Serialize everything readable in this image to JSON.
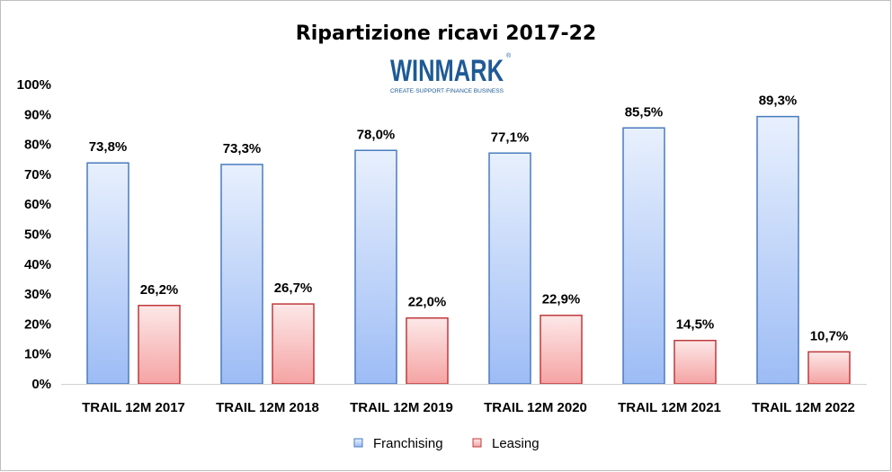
{
  "chart_data": {
    "type": "bar",
    "title": "Ripartizione  ricavi 2017-22",
    "logo": {
      "text": "WINMARK",
      "tagline": "CREATE·SUPPORT·FINANCE BUSINESS",
      "mark": "®"
    },
    "categories": [
      "TRAIL 12M 2017",
      "TRAIL 12M 2018",
      "TRAIL 12M 2019",
      "TRAIL 12M 2020",
      "TRAIL 12M 2021",
      "TRAIL 12M 2022"
    ],
    "series": [
      {
        "name": "Franchising",
        "values": [
          73.8,
          73.3,
          78.0,
          77.1,
          85.5,
          89.3
        ],
        "labels": [
          "73,8%",
          "73,3%",
          "78,0%",
          "77,1%",
          "85,5%",
          "89,3%"
        ],
        "color": "#9dbcf5",
        "stroke": "#4a7bbf"
      },
      {
        "name": "Leasing",
        "values": [
          26.2,
          26.7,
          22.0,
          22.9,
          14.5,
          10.7
        ],
        "labels": [
          "26,2%",
          "26,7%",
          "22,0%",
          "22,9%",
          "14,5%",
          "10,7%"
        ],
        "color": "#f5a3a3",
        "stroke": "#c0393b"
      }
    ],
    "yticks": [
      "0%",
      "10%",
      "20%",
      "30%",
      "40%",
      "50%",
      "60%",
      "70%",
      "80%",
      "90%",
      "100%"
    ],
    "ylim": [
      0,
      100
    ],
    "grid": false,
    "legend": "bottom-center",
    "xlabel": "",
    "ylabel": ""
  }
}
